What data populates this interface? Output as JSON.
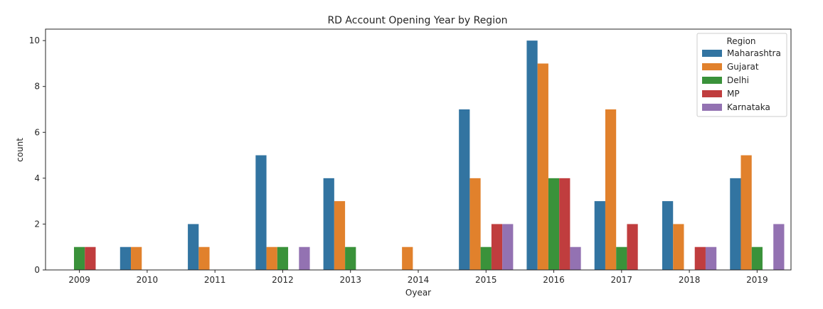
{
  "chart_data": {
    "type": "bar",
    "title": "RD Account Opening Year by Region",
    "xlabel": "Oyear",
    "ylabel": "count",
    "categories": [
      "2009",
      "2010",
      "2011",
      "2012",
      "2013",
      "2014",
      "2015",
      "2016",
      "2017",
      "2018",
      "2019"
    ],
    "yticks": [
      0,
      2,
      4,
      6,
      8,
      10
    ],
    "ylim": [
      0,
      10.5
    ],
    "grid": false,
    "legend": {
      "title": "Region",
      "placement": "top-right"
    },
    "series": [
      {
        "name": "Maharashtra",
        "color": "#3274a1",
        "values": [
          0,
          1,
          2,
          5,
          4,
          0,
          7,
          10,
          3,
          3,
          4
        ]
      },
      {
        "name": "Gujarat",
        "color": "#e1812c",
        "values": [
          0,
          1,
          1,
          1,
          3,
          1,
          4,
          9,
          7,
          2,
          5
        ]
      },
      {
        "name": "Delhi",
        "color": "#3a923a",
        "values": [
          1,
          0,
          0,
          1,
          1,
          0,
          1,
          4,
          1,
          0,
          1
        ]
      },
      {
        "name": "MP",
        "color": "#c03d3e",
        "values": [
          1,
          0,
          0,
          0,
          0,
          0,
          2,
          4,
          2,
          1,
          0
        ]
      },
      {
        "name": "Karnataka",
        "color": "#9372b2",
        "values": [
          0,
          0,
          0,
          1,
          0,
          0,
          2,
          1,
          0,
          1,
          2
        ]
      }
    ]
  }
}
